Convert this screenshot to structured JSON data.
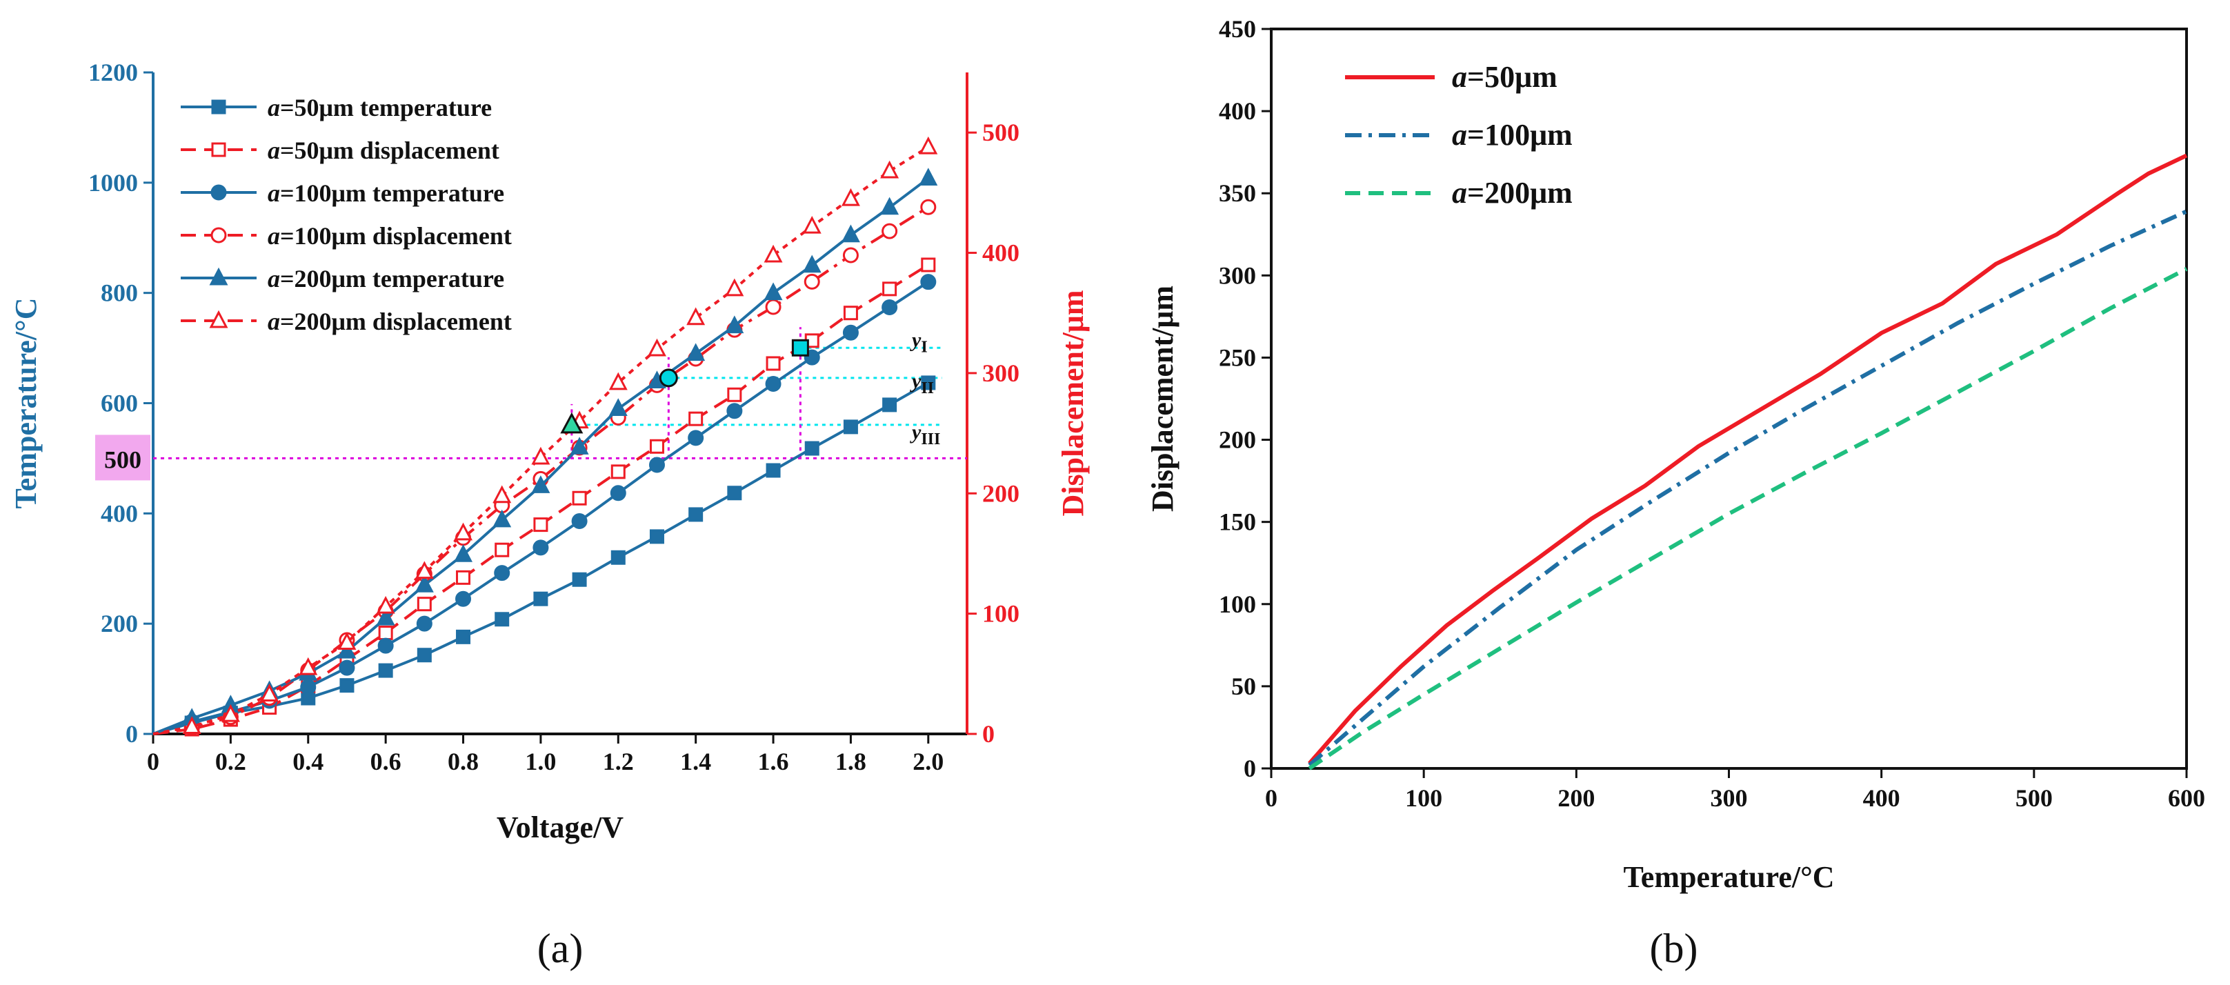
{
  "chart_data": [
    {
      "type": "line",
      "panel_label": "(a)",
      "xlabel": "Voltage/V",
      "ylabel_left": "Temperature/°C",
      "ylabel_right": "Displacement/μm",
      "xlim": [
        0,
        2.1
      ],
      "ylim_left": [
        0,
        1200
      ],
      "ylim_right": [
        0,
        550
      ],
      "x_ticks": [
        "0",
        "0.2",
        "0.4",
        "0.6",
        "0.8",
        "1.0",
        "1.2",
        "1.4",
        "1.6",
        "1.8",
        "2.0"
      ],
      "x_tick_values": [
        0,
        0.2,
        0.4,
        0.6,
        0.8,
        1.0,
        1.2,
        1.4,
        1.6,
        1.8,
        2.0
      ],
      "y_ticks_left": [
        0,
        200,
        400,
        600,
        800,
        1000,
        1200
      ],
      "y_ticks_right": [
        0,
        100,
        200,
        300,
        400,
        500
      ],
      "colors": {
        "temperature": "#1f6fa4",
        "displacement": "#ee1c25",
        "guide_cyan": "#00e5ee",
        "guide_magenta": "#dd00dd"
      },
      "legend_position": "top-left",
      "x": [
        0,
        0.1,
        0.2,
        0.3,
        0.4,
        0.5,
        0.6,
        0.7,
        0.8,
        0.9,
        1.0,
        1.1,
        1.2,
        1.3,
        1.4,
        1.5,
        1.6,
        1.7,
        1.8,
        1.9,
        2.0
      ],
      "series": [
        {
          "name_prefix": "a",
          "name_suffix": "=50μm temperature",
          "axis": "left",
          "kind": "temperature",
          "marker": "square-filled",
          "dash": "solid",
          "values": [
            0,
            20,
            38,
            50,
            65,
            88,
            115,
            143,
            176,
            208,
            245,
            280,
            320,
            358,
            398,
            437,
            478,
            518,
            557,
            597,
            637
          ]
        },
        {
          "name_prefix": "a",
          "name_suffix": "=50μm displacement",
          "axis": "right",
          "kind": "displacement",
          "marker": "square-open",
          "dash": "dashed",
          "values": [
            0,
            4,
            12,
            22,
            40,
            62,
            84,
            108,
            130,
            153,
            174,
            196,
            218,
            239,
            262,
            282,
            308,
            327,
            350,
            370,
            390
          ]
        },
        {
          "name_prefix": "a",
          "name_suffix": "=100μm temperature",
          "axis": "left",
          "kind": "temperature",
          "marker": "circle-filled",
          "dash": "solid",
          "values": [
            0,
            22,
            40,
            60,
            85,
            120,
            160,
            200,
            245,
            292,
            338,
            386,
            437,
            488,
            537,
            586,
            635,
            683,
            728,
            774,
            820
          ]
        },
        {
          "name_prefix": "a",
          "name_suffix": "=100μm displacement",
          "axis": "right",
          "kind": "displacement",
          "marker": "circle-open",
          "dash": "dashdot",
          "values": [
            0,
            5,
            14,
            30,
            53,
            78,
            102,
            133,
            163,
            190,
            212,
            238,
            263,
            290,
            312,
            336,
            355,
            376,
            398,
            418,
            438
          ]
        },
        {
          "name_prefix": "a",
          "name_suffix": "=200μm temperature",
          "axis": "left",
          "kind": "temperature",
          "marker": "triangle-filled",
          "dash": "solid",
          "values": [
            0,
            28,
            52,
            78,
            110,
            150,
            210,
            270,
            325,
            388,
            450,
            520,
            590,
            640,
            690,
            740,
            800,
            850,
            905,
            955,
            1008
          ]
        },
        {
          "name_prefix": "a",
          "name_suffix": "=200μm displacement",
          "axis": "right",
          "kind": "displacement",
          "marker": "triangle-open",
          "dash": "dotted",
          "values": [
            0,
            6,
            16,
            33,
            55,
            76,
            106,
            135,
            167,
            198,
            230,
            260,
            292,
            320,
            346,
            370,
            398,
            422,
            445,
            468,
            488
          ]
        }
      ],
      "annotations": {
        "boxed_value": "500",
        "labels": [
          {
            "base": "y",
            "sub": "I"
          },
          {
            "base": "y",
            "sub": "II"
          },
          {
            "base": "y",
            "sub": "III"
          }
        ],
        "guide_temperature": 500,
        "intersection_voltages": [
          1.08,
          1.33,
          1.67
        ],
        "intersection_displacements": [
          257,
          296,
          321
        ]
      }
    },
    {
      "type": "line",
      "panel_label": "(b)",
      "xlabel": "Temperature/°C",
      "ylabel": "Displacement/μm",
      "xlim": [
        0,
        600
      ],
      "ylim": [
        0,
        450
      ],
      "x_ticks": [
        0,
        100,
        200,
        300,
        400,
        500,
        600
      ],
      "y_ticks": [
        0,
        50,
        100,
        150,
        200,
        250,
        300,
        350,
        400,
        450
      ],
      "legend_position": "top-left",
      "series": [
        {
          "name_prefix": "a",
          "name_suffix": "=50μm",
          "color": "#ee1c25",
          "dash": "solid",
          "x": [
            25,
            55,
            85,
            115,
            145,
            175,
            210,
            245,
            280,
            320,
            360,
            400,
            440,
            475,
            515,
            555,
            575,
            600
          ],
          "y": [
            3,
            35,
            62,
            87,
            108,
            128,
            152,
            172,
            196,
            218,
            240,
            265,
            283,
            307,
            325,
            350,
            362,
            373
          ]
        },
        {
          "name_prefix": "a",
          "name_suffix": "=100μm",
          "color": "#1f6fa4",
          "dash": "dashdot",
          "x": [
            25,
            60,
            100,
            150,
            200,
            250,
            300,
            350,
            400,
            450,
            500,
            550,
            600
          ],
          "y": [
            2,
            30,
            62,
            98,
            133,
            163,
            192,
            219,
            245,
            271,
            295,
            318,
            339
          ]
        },
        {
          "name_prefix": "a",
          "name_suffix": "=200μm",
          "color": "#1fbf7f",
          "dash": "dashed",
          "x": [
            25,
            60,
            100,
            150,
            200,
            250,
            300,
            350,
            400,
            450,
            500,
            550,
            600
          ],
          "y": [
            0,
            22,
            45,
            73,
            101,
            128,
            155,
            180,
            204,
            229,
            254,
            280,
            304
          ]
        }
      ]
    }
  ]
}
